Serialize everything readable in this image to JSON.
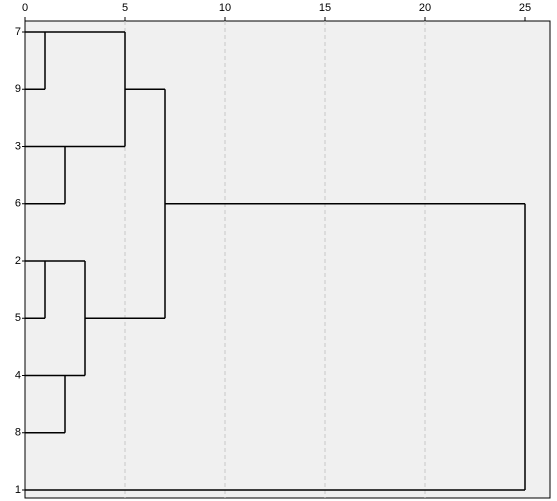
{
  "chart_data": {
    "type": "dendrogram",
    "xlim": [
      0,
      25
    ],
    "xticks": [
      0,
      5,
      10,
      15,
      20,
      25
    ],
    "grid": true,
    "tree": {
      "distance": 25,
      "children": [
        {
          "distance": 7,
          "children": [
            {
              "distance": 5,
              "children": [
                {
                  "distance": 1,
                  "children": [
                    {
                      "label": "7"
                    },
                    {
                      "label": "9"
                    }
                  ]
                },
                {
                  "distance": 2,
                  "children": [
                    {
                      "label": "3"
                    },
                    {
                      "label": "6"
                    }
                  ]
                }
              ]
            },
            {
              "distance": 3,
              "children": [
                {
                  "distance": 1,
                  "children": [
                    {
                      "label": "2"
                    },
                    {
                      "label": "5"
                    }
                  ]
                },
                {
                  "distance": 2,
                  "children": [
                    {
                      "label": "4"
                    },
                    {
                      "label": "8"
                    }
                  ]
                }
              ]
            }
          ]
        },
        {
          "label": "1"
        }
      ]
    }
  }
}
